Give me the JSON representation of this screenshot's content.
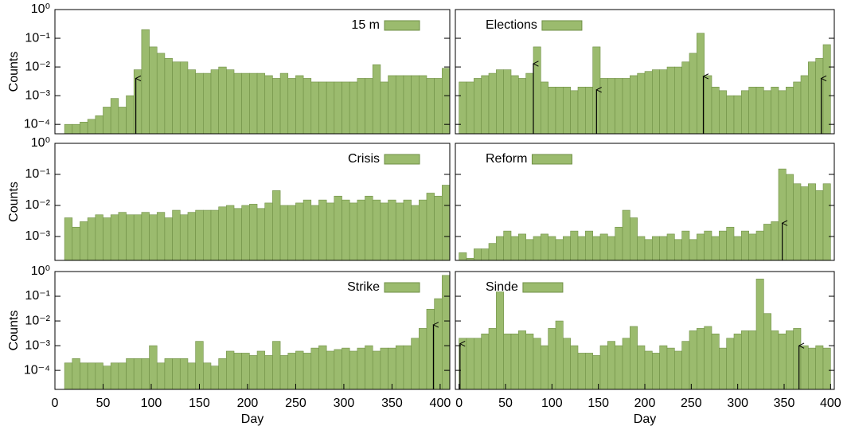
{
  "chart_data": [
    {
      "type": "histogram",
      "series": [
        {
          "name": "15 m",
          "color": "#9bbb6e",
          "values": [
            0.0001,
            0.0001,
            0.00012,
            0.00015,
            0.0002,
            0.0004,
            0.0008,
            0.0004,
            0.001,
            0.008,
            0.2,
            0.05,
            0.03,
            0.02,
            0.015,
            0.015,
            0.008,
            0.006,
            0.006,
            0.008,
            0.01,
            0.008,
            0.006,
            0.006,
            0.006,
            0.006,
            0.005,
            0.004,
            0.006,
            0.004,
            0.005,
            0.004,
            0.003,
            0.003,
            0.003,
            0.003,
            0.003,
            0.003,
            0.004,
            0.004,
            0.012,
            0.003,
            0.005,
            0.005,
            0.005,
            0.005,
            0.005,
            0.004,
            0.004,
            0.009
          ]
        }
      ],
      "bins": [
        10,
        18,
        26,
        34,
        42,
        50,
        58,
        66,
        74,
        82,
        90,
        98,
        106,
        114,
        122,
        130,
        138,
        146,
        154,
        162,
        170,
        178,
        186,
        194,
        202,
        210,
        218,
        226,
        234,
        242,
        250,
        258,
        266,
        274,
        282,
        290,
        298,
        306,
        314,
        322,
        330,
        338,
        346,
        354,
        362,
        370,
        378,
        386,
        394,
        402,
        410
      ],
      "xlim": [
        0,
        410
      ],
      "ylim": [
        4.7e-05,
        1
      ],
      "log_scale": true,
      "legend": "top right",
      "ylabel": "Counts",
      "yticks": [
        {
          "value": 1,
          "label": "10⁰"
        },
        {
          "value": 0.1,
          "label": "10⁻¹"
        },
        {
          "value": 0.01,
          "label": "10⁻²"
        },
        {
          "value": 0.001,
          "label": "10⁻³"
        },
        {
          "value": 0.0001,
          "label": "10⁻⁴"
        }
      ],
      "arrows": [
        {
          "x": 84,
          "y": 0.004
        }
      ]
    },
    {
      "type": "histogram",
      "series": [
        {
          "name": "Elections",
          "color": "#9bbb6e",
          "values": [
            0.003,
            0.003,
            0.004,
            0.005,
            0.006,
            0.008,
            0.008,
            0.005,
            0.004,
            0.006,
            0.05,
            0.003,
            0.002,
            0.002,
            0.002,
            0.0015,
            0.002,
            0.002,
            0.05,
            0.004,
            0.004,
            0.004,
            0.004,
            0.005,
            0.006,
            0.007,
            0.008,
            0.008,
            0.01,
            0.01,
            0.015,
            0.03,
            0.15,
            0.005,
            0.002,
            0.0015,
            0.001,
            0.001,
            0.0015,
            0.002,
            0.002,
            0.0015,
            0.002,
            0.0015,
            0.002,
            0.003,
            0.005,
            0.015,
            0.02,
            0.06
          ]
        }
      ],
      "bins": [
        0,
        8,
        16,
        24,
        32,
        40,
        48,
        56,
        64,
        72,
        80,
        88,
        96,
        104,
        112,
        120,
        128,
        136,
        144,
        152,
        160,
        168,
        176,
        184,
        192,
        200,
        208,
        216,
        224,
        232,
        240,
        248,
        256,
        264,
        272,
        280,
        288,
        296,
        304,
        312,
        320,
        328,
        336,
        344,
        352,
        360,
        368,
        376,
        384,
        392,
        400
      ],
      "xlim": [
        -4,
        404
      ],
      "ylim": [
        4.7e-05,
        1
      ],
      "log_scale": true,
      "legend": "top left",
      "arrows": [
        {
          "x": 80,
          "y": 0.013
        },
        {
          "x": 148,
          "y": 0.0016
        },
        {
          "x": 263,
          "y": 0.0047
        },
        {
          "x": 390,
          "y": 0.004
        }
      ]
    },
    {
      "type": "histogram",
      "series": [
        {
          "name": "Crisis",
          "color": "#9bbb6e",
          "values": [
            0.004,
            0.002,
            0.003,
            0.004,
            0.005,
            0.004,
            0.005,
            0.006,
            0.005,
            0.005,
            0.006,
            0.005,
            0.006,
            0.004,
            0.007,
            0.005,
            0.006,
            0.007,
            0.007,
            0.007,
            0.009,
            0.01,
            0.008,
            0.01,
            0.011,
            0.008,
            0.012,
            0.03,
            0.01,
            0.01,
            0.012,
            0.015,
            0.01,
            0.015,
            0.012,
            0.02,
            0.015,
            0.012,
            0.015,
            0.02,
            0.015,
            0.012,
            0.015,
            0.012,
            0.015,
            0.01,
            0.015,
            0.025,
            0.02,
            0.045
          ]
        }
      ],
      "bins": [
        10,
        18,
        26,
        34,
        42,
        50,
        58,
        66,
        74,
        82,
        90,
        98,
        106,
        114,
        122,
        130,
        138,
        146,
        154,
        162,
        170,
        178,
        186,
        194,
        202,
        210,
        218,
        226,
        234,
        242,
        250,
        258,
        266,
        274,
        282,
        290,
        298,
        306,
        314,
        322,
        330,
        338,
        346,
        354,
        362,
        370,
        378,
        386,
        394,
        402,
        410
      ],
      "xlim": [
        0,
        410
      ],
      "ylim": [
        0.00017,
        1
      ],
      "log_scale": true,
      "legend": "top right",
      "ylabel": "Counts",
      "yticks": [
        {
          "value": 1,
          "label": "10⁰"
        },
        {
          "value": 0.1,
          "label": "10⁻¹"
        },
        {
          "value": 0.01,
          "label": "10⁻²"
        },
        {
          "value": 0.001,
          "label": "10⁻³"
        }
      ],
      "arrows": []
    },
    {
      "type": "histogram",
      "series": [
        {
          "name": "Reform",
          "color": "#9bbb6e",
          "values": [
            0.0003,
            0.0002,
            0.0004,
            0.0004,
            0.0006,
            0.001,
            0.0015,
            0.001,
            0.0012,
            0.0008,
            0.001,
            0.0012,
            0.001,
            0.0008,
            0.001,
            0.0015,
            0.001,
            0.0015,
            0.001,
            0.0012,
            0.001,
            0.002,
            0.007,
            0.004,
            0.001,
            0.0008,
            0.001,
            0.001,
            0.0012,
            0.0008,
            0.0015,
            0.0008,
            0.0012,
            0.0015,
            0.001,
            0.0015,
            0.002,
            0.001,
            0.0015,
            0.0012,
            0.0015,
            0.0025,
            0.003,
            0.15,
            0.1,
            0.05,
            0.04,
            0.05,
            0.03,
            0.05
          ]
        }
      ],
      "bins": [
        0,
        8,
        16,
        24,
        32,
        40,
        48,
        56,
        64,
        72,
        80,
        88,
        96,
        104,
        112,
        120,
        128,
        136,
        144,
        152,
        160,
        168,
        176,
        184,
        192,
        200,
        208,
        216,
        224,
        232,
        240,
        248,
        256,
        264,
        272,
        280,
        288,
        296,
        304,
        312,
        320,
        328,
        336,
        344,
        352,
        360,
        368,
        376,
        384,
        392,
        400
      ],
      "xlim": [
        -4,
        404
      ],
      "ylim": [
        0.00017,
        1
      ],
      "log_scale": true,
      "legend": "top left",
      "arrows": [
        {
          "x": 348,
          "y": 0.0027
        }
      ]
    },
    {
      "type": "histogram",
      "series": [
        {
          "name": "Strike",
          "color": "#9bbb6e",
          "values": [
            0.0002,
            0.0003,
            0.0002,
            0.0002,
            0.0002,
            0.00015,
            0.0002,
            0.0002,
            0.0003,
            0.0003,
            0.0003,
            0.001,
            0.0002,
            0.0003,
            0.0003,
            0.0003,
            0.0002,
            0.0015,
            0.0002,
            0.00015,
            0.0003,
            0.0006,
            0.0005,
            0.0005,
            0.0004,
            0.0006,
            0.0004,
            0.0015,
            0.0004,
            0.0005,
            0.0006,
            0.0005,
            0.0008,
            0.001,
            0.0006,
            0.0007,
            0.0008,
            0.0006,
            0.0008,
            0.001,
            0.0006,
            0.0008,
            0.0008,
            0.001,
            0.001,
            0.002,
            0.005,
            0.03,
            0.08,
            0.7
          ]
        }
      ],
      "bins": [
        10,
        18,
        26,
        34,
        42,
        50,
        58,
        66,
        74,
        82,
        90,
        98,
        106,
        114,
        122,
        130,
        138,
        146,
        154,
        162,
        170,
        178,
        186,
        194,
        202,
        210,
        218,
        226,
        234,
        242,
        250,
        258,
        266,
        274,
        282,
        290,
        298,
        306,
        314,
        322,
        330,
        338,
        346,
        354,
        362,
        370,
        378,
        386,
        394,
        402,
        410
      ],
      "xlim": [
        0,
        410
      ],
      "ylim": [
        1.7e-05,
        1
      ],
      "log_scale": true,
      "legend": "top right",
      "ylabel": "Counts",
      "xlabel": "Day",
      "yticks": [
        {
          "value": 1,
          "label": "10⁰"
        },
        {
          "value": 0.1,
          "label": "10⁻¹"
        },
        {
          "value": 0.01,
          "label": "10⁻²"
        },
        {
          "value": 0.001,
          "label": "10⁻³"
        },
        {
          "value": 0.0001,
          "label": "10⁻⁴"
        }
      ],
      "xticks": [
        0,
        50,
        100,
        150,
        200,
        250,
        300,
        350,
        400
      ],
      "arrows": [
        {
          "x": 393,
          "y": 0.007
        }
      ]
    },
    {
      "type": "histogram",
      "series": [
        {
          "name": "Sinde",
          "color": "#9bbb6e",
          "values": [
            0.002,
            0.002,
            0.002,
            0.003,
            0.005,
            0.15,
            0.003,
            0.003,
            0.004,
            0.003,
            0.002,
            0.001,
            0.005,
            0.01,
            0.002,
            0.001,
            0.0005,
            0.0005,
            0.0004,
            0.001,
            0.0015,
            0.001,
            0.002,
            0.006,
            0.001,
            0.0006,
            0.0005,
            0.001,
            0.0008,
            0.0006,
            0.0015,
            0.004,
            0.005,
            0.006,
            0.003,
            0.0008,
            0.002,
            0.003,
            0.004,
            0.004,
            0.5,
            0.02,
            0.004,
            0.003,
            0.004,
            0.005,
            0.001,
            0.0008,
            0.001,
            0.0008
          ]
        }
      ],
      "bins": [
        0,
        8,
        16,
        24,
        32,
        40,
        48,
        56,
        64,
        72,
        80,
        88,
        96,
        104,
        112,
        120,
        128,
        136,
        144,
        152,
        160,
        168,
        176,
        184,
        192,
        200,
        208,
        216,
        224,
        232,
        240,
        248,
        256,
        264,
        272,
        280,
        288,
        296,
        304,
        312,
        320,
        328,
        336,
        344,
        352,
        360,
        368,
        376,
        384,
        392,
        400
      ],
      "xlim": [
        -4,
        404
      ],
      "ylim": [
        1.7e-05,
        1
      ],
      "log_scale": true,
      "legend": "top left",
      "xlabel": "Day",
      "xticks": [
        0,
        50,
        100,
        150,
        200,
        250,
        300,
        350,
        400
      ],
      "arrows": [
        {
          "x": 1,
          "y": 0.0012
        },
        {
          "x": 366,
          "y": 0.001
        }
      ]
    }
  ]
}
